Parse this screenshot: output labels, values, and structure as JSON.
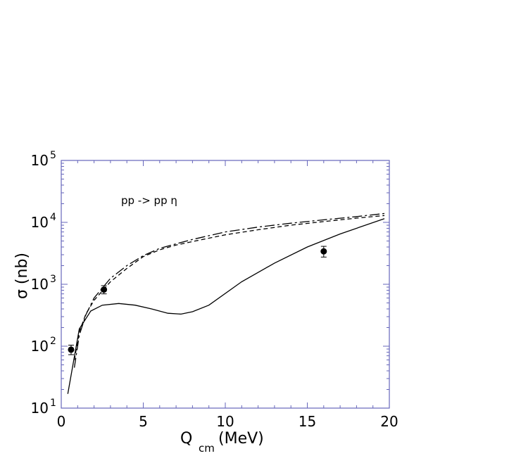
{
  "chart_data": {
    "type": "line",
    "xlabel_main": "Q",
    "xlabel_sub": "cm",
    "xlabel_unit": "(MeV)",
    "ylabel": "σ  (nb)",
    "annotation": "pp  -> pp η",
    "xlim": [
      0,
      20
    ],
    "ylim": [
      10,
      100000
    ],
    "yscale": "log",
    "x_ticks": [
      0,
      5,
      10,
      15,
      20
    ],
    "x_tick_labels": [
      "0",
      "5",
      "10",
      "15",
      "20"
    ],
    "y_tick_base": "10",
    "y_tick_exponents": [
      "1",
      "2",
      "3",
      "4",
      "5"
    ],
    "grid": false,
    "axis_color": "#6666bb",
    "series": [
      {
        "style": "solid",
        "x": [
          0.4,
          1.1,
          1.8,
          2.5,
          3.5,
          4.5,
          5.5,
          6.5,
          7.3,
          8.0,
          9.0,
          11.0,
          13.0,
          15.0,
          17.0,
          19.7
        ],
        "y": [
          17,
          190,
          370,
          460,
          490,
          460,
          400,
          340,
          330,
          360,
          460,
          1100,
          2200,
          4000,
          6500,
          11500
        ]
      },
      {
        "style": "dashed",
        "x": [
          0.8,
          1.1,
          1.5,
          2.0,
          3.0,
          4.0,
          5.0,
          6.0,
          7.0,
          8.0,
          10.0,
          12.0,
          14.0,
          16.0,
          18.0,
          19.7
        ],
        "y": [
          60,
          170,
          330,
          550,
          1100,
          1800,
          2800,
          3600,
          4300,
          4900,
          6300,
          7600,
          9000,
          10300,
          11700,
          12900
        ]
      },
      {
        "style": "long-dash",
        "x": [
          0.8,
          1.1,
          1.5,
          2.0,
          3.0,
          4.0,
          5.0,
          6.0,
          7.0,
          8.0,
          10.0,
          12.0,
          14.0,
          16.0,
          18.0,
          19.7
        ],
        "y": [
          45,
          150,
          320,
          600,
          1250,
          2000,
          2900,
          3800,
          4500,
          5300,
          7000,
          8400,
          9700,
          11000,
          12400,
          13900
        ]
      }
    ],
    "points": [
      {
        "x": 0.6,
        "y": 88,
        "err_lo": 73,
        "err_hi": 104
      },
      {
        "x": 2.6,
        "y": 820,
        "err_lo": 700,
        "err_hi": 950
      },
      {
        "x": 16.0,
        "y": 3400,
        "err_lo": 2750,
        "err_hi": 4100
      }
    ]
  }
}
